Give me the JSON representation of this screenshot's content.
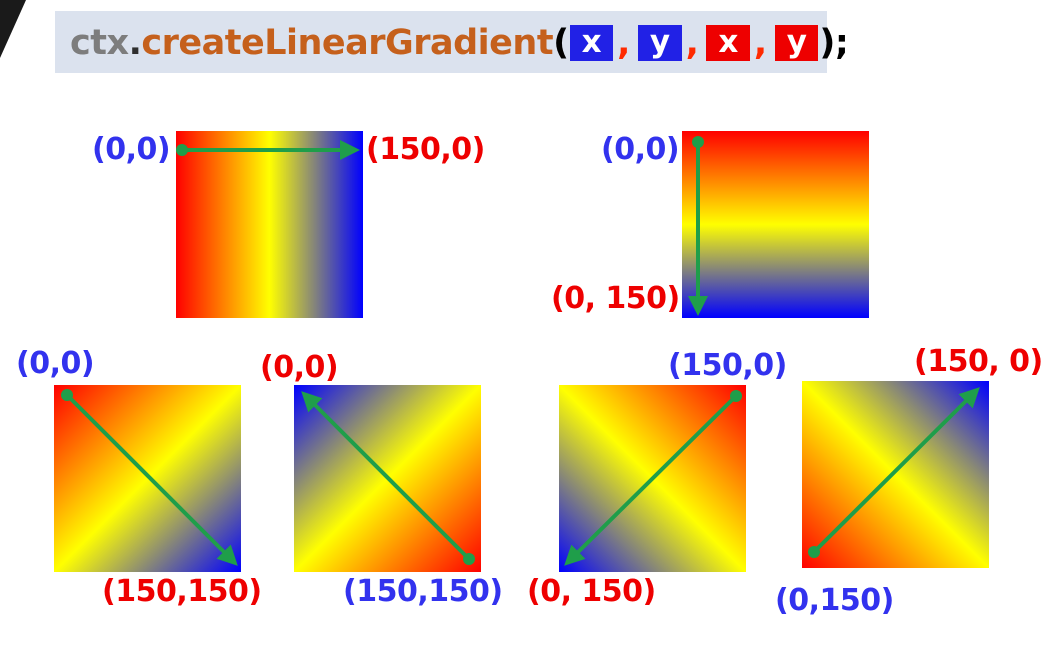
{
  "code": {
    "object": "ctx",
    "dot": ".",
    "method": "createLinearGradient",
    "open_paren": "(",
    "args": [
      "x",
      "y",
      "x",
      "y"
    ],
    "comma": ",",
    "close": ");"
  },
  "colors": {
    "gradient_start": "#ff0000",
    "gradient_middle": "#ffff00",
    "gradient_end": "#0000ff",
    "arrow": "#1f9e4a",
    "start_label": "#3232ee",
    "end_label": "#ee0000",
    "code_background": "#dbe2ee"
  },
  "examples": [
    {
      "direction": "left-to-right",
      "start_label": "(0,0)",
      "end_label": "(150,0)"
    },
    {
      "direction": "top-to-bottom",
      "start_label": "(0,0)",
      "end_label": "(0, 150)"
    },
    {
      "direction": "top-left-to-bottom-right",
      "start_label": "(0,0)",
      "end_label": "(150,150)"
    },
    {
      "direction": "bottom-right-to-top-left",
      "start_label": "(150,150)",
      "end_label": "(0,0)"
    },
    {
      "direction": "top-right-to-bottom-left",
      "start_label": "(150,0)",
      "end_label": "(0, 150)"
    },
    {
      "direction": "bottom-left-to-top-right",
      "start_label": "(0,150)",
      "end_label": "(150, 0)"
    }
  ]
}
